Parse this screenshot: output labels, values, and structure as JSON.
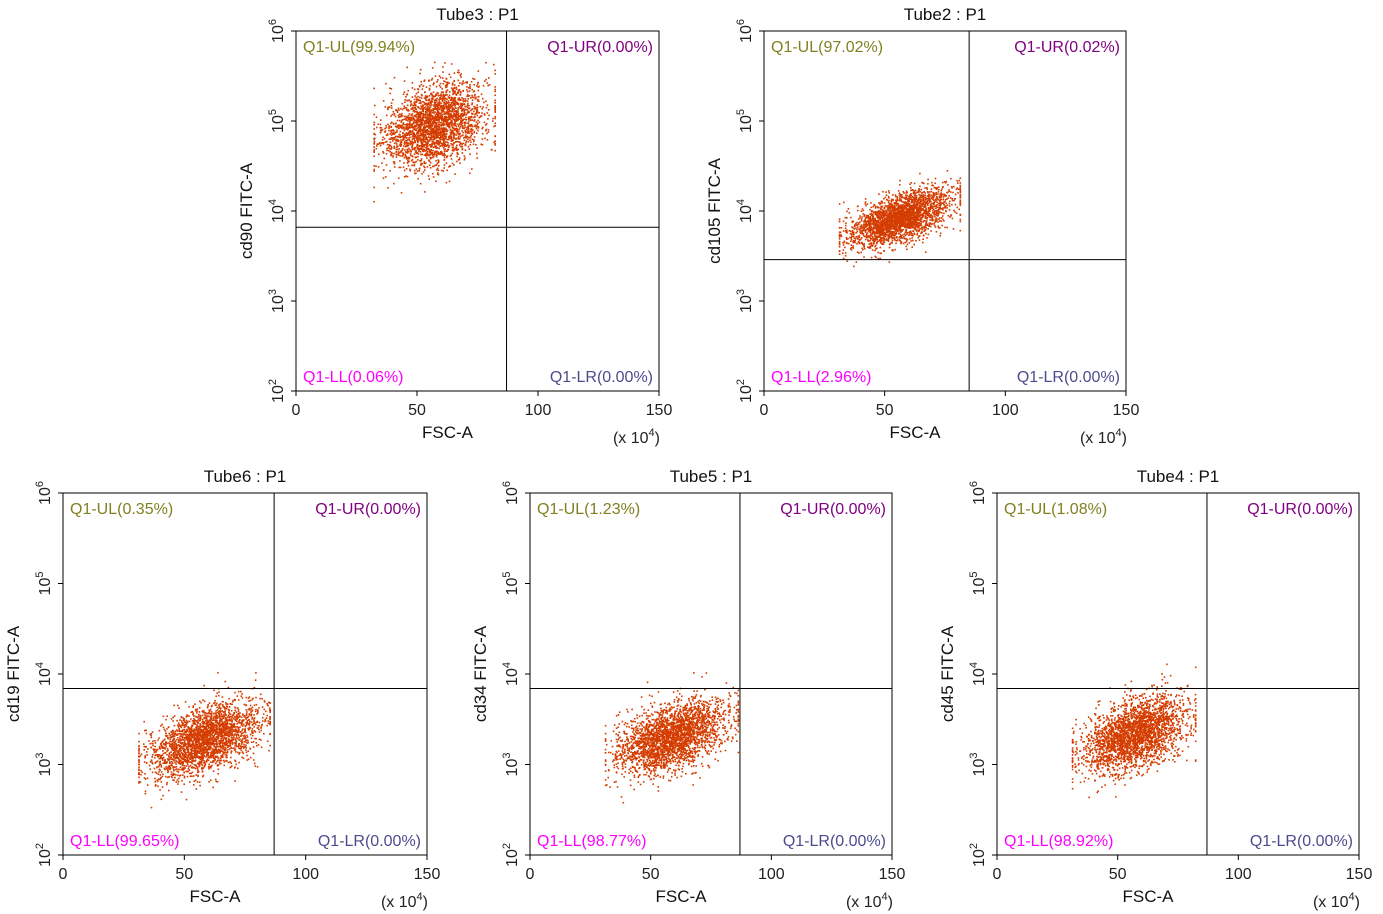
{
  "colors": {
    "ul": "#808020",
    "ur": "#800080",
    "ll": "#ff00ff",
    "lr": "#4b4b8f",
    "dots": "#d43c00",
    "axis": "#000000"
  },
  "chart_data": [
    {
      "type": "scatter",
      "title": "Tube3 : P1",
      "xlabel": "FSC-A",
      "x_multiplier": "(x 10",
      "x_multiplier_exp": "4",
      "x_multiplier_close": ")",
      "ylabel": "cd90 FITC-A",
      "xlim": [
        0,
        150
      ],
      "ylim_log10": [
        2,
        6
      ],
      "xticks": [
        "0",
        "50",
        "100",
        "150"
      ],
      "yticks": [
        {
          "base": "10",
          "exp": "2"
        },
        {
          "base": "10",
          "exp": "3"
        },
        {
          "base": "10",
          "exp": "4"
        },
        {
          "base": "10",
          "exp": "5"
        },
        {
          "base": "10",
          "exp": "6"
        }
      ],
      "gate": {
        "x": 87,
        "y_log10": 3.82
      },
      "quadrants": {
        "ul": "Q1-UL(99.94%)",
        "ur": "Q1-UR(0.00%)",
        "ll": "Q1-LL(0.06%)",
        "lr": "Q1-LR(0.00%)"
      },
      "cluster": {
        "x_range": [
          32,
          82
        ],
        "y_log10_center": 4.95,
        "y_log10_spread": 0.22,
        "slope_per_x": 0.007,
        "x_center": 55,
        "count": 2600
      }
    },
    {
      "type": "scatter",
      "title": "Tube2 : P1",
      "xlabel": "FSC-A",
      "x_multiplier": "(x 10",
      "x_multiplier_exp": "4",
      "x_multiplier_close": ")",
      "ylabel": "cd105 FITC-A",
      "xlim": [
        0,
        150
      ],
      "ylim_log10": [
        2,
        6
      ],
      "xticks": [
        "0",
        "50",
        "100",
        "150"
      ],
      "yticks": [
        {
          "base": "10",
          "exp": "2"
        },
        {
          "base": "10",
          "exp": "3"
        },
        {
          "base": "10",
          "exp": "4"
        },
        {
          "base": "10",
          "exp": "5"
        },
        {
          "base": "10",
          "exp": "6"
        }
      ],
      "gate": {
        "x": 85,
        "y_log10": 3.46
      },
      "quadrants": {
        "ul": "Q1-UL(97.02%)",
        "ur": "Q1-UR(0.02%)",
        "ll": "Q1-LL(2.96%)",
        "lr": "Q1-LR(0.00%)"
      },
      "cluster": {
        "x_range": [
          31,
          81
        ],
        "y_log10_center": 3.92,
        "y_log10_spread": 0.13,
        "slope_per_x": 0.0085,
        "x_center": 55,
        "count": 2600
      }
    },
    {
      "type": "scatter",
      "title": "Tube6 : P1",
      "xlabel": "FSC-A",
      "x_multiplier": "(x 10",
      "x_multiplier_exp": "4",
      "x_multiplier_close": ")",
      "ylabel": "cd19 FITC-A",
      "xlim": [
        0,
        150
      ],
      "ylim_log10": [
        2,
        6
      ],
      "xticks": [
        "0",
        "50",
        "100",
        "150"
      ],
      "yticks": [
        {
          "base": "10",
          "exp": "2"
        },
        {
          "base": "10",
          "exp": "3"
        },
        {
          "base": "10",
          "exp": "4"
        },
        {
          "base": "10",
          "exp": "5"
        },
        {
          "base": "10",
          "exp": "6"
        }
      ],
      "gate": {
        "x": 87,
        "y_log10": 3.84
      },
      "quadrants": {
        "ul": "Q1-UL(0.35%)",
        "ur": "Q1-UR(0.00%)",
        "ll": "Q1-LL(99.65%)",
        "lr": "Q1-LR(0.00%)"
      },
      "cluster": {
        "x_range": [
          31,
          85
        ],
        "y_log10_center": 3.25,
        "y_log10_spread": 0.18,
        "slope_per_x": 0.0085,
        "x_center": 55,
        "count": 2600
      }
    },
    {
      "type": "scatter",
      "title": "Tube5 : P1",
      "xlabel": "FSC-A",
      "x_multiplier": "(x 10",
      "x_multiplier_exp": "4",
      "x_multiplier_close": ")",
      "ylabel": "cd34 FITC-A",
      "xlim": [
        0,
        150
      ],
      "ylim_log10": [
        2,
        6
      ],
      "xticks": [
        "0",
        "50",
        "100",
        "150"
      ],
      "yticks": [
        {
          "base": "10",
          "exp": "2"
        },
        {
          "base": "10",
          "exp": "3"
        },
        {
          "base": "10",
          "exp": "4"
        },
        {
          "base": "10",
          "exp": "5"
        },
        {
          "base": "10",
          "exp": "6"
        }
      ],
      "gate": {
        "x": 87,
        "y_log10": 3.84
      },
      "quadrants": {
        "ul": "Q1-UL(1.23%)",
        "ur": "Q1-UR(0.00%)",
        "ll": "Q1-LL(98.77%)",
        "lr": "Q1-LR(0.00%)"
      },
      "cluster": {
        "x_range": [
          31,
          86
        ],
        "y_log10_center": 3.28,
        "y_log10_spread": 0.18,
        "slope_per_x": 0.0085,
        "x_center": 55,
        "count": 2600
      }
    },
    {
      "type": "scatter",
      "title": "Tube4 : P1",
      "xlabel": "FSC-A",
      "x_multiplier": "(x 10",
      "x_multiplier_exp": "4",
      "x_multiplier_close": ")",
      "ylabel": "cd45 FITC-A",
      "xlim": [
        0,
        150
      ],
      "ylim_log10": [
        2,
        6
      ],
      "xticks": [
        "0",
        "50",
        "100",
        "150"
      ],
      "yticks": [
        {
          "base": "10",
          "exp": "2"
        },
        {
          "base": "10",
          "exp": "3"
        },
        {
          "base": "10",
          "exp": "4"
        },
        {
          "base": "10",
          "exp": "5"
        },
        {
          "base": "10",
          "exp": "6"
        }
      ],
      "gate": {
        "x": 87,
        "y_log10": 3.84
      },
      "quadrants": {
        "ul": "Q1-UL(1.08%)",
        "ur": "Q1-UR(0.00%)",
        "ll": "Q1-LL(98.92%)",
        "lr": "Q1-LR(0.00%)"
      },
      "cluster": {
        "x_range": [
          31,
          82
        ],
        "y_log10_center": 3.32,
        "y_log10_spread": 0.19,
        "slope_per_x": 0.0085,
        "x_center": 55,
        "count": 2600
      }
    }
  ]
}
